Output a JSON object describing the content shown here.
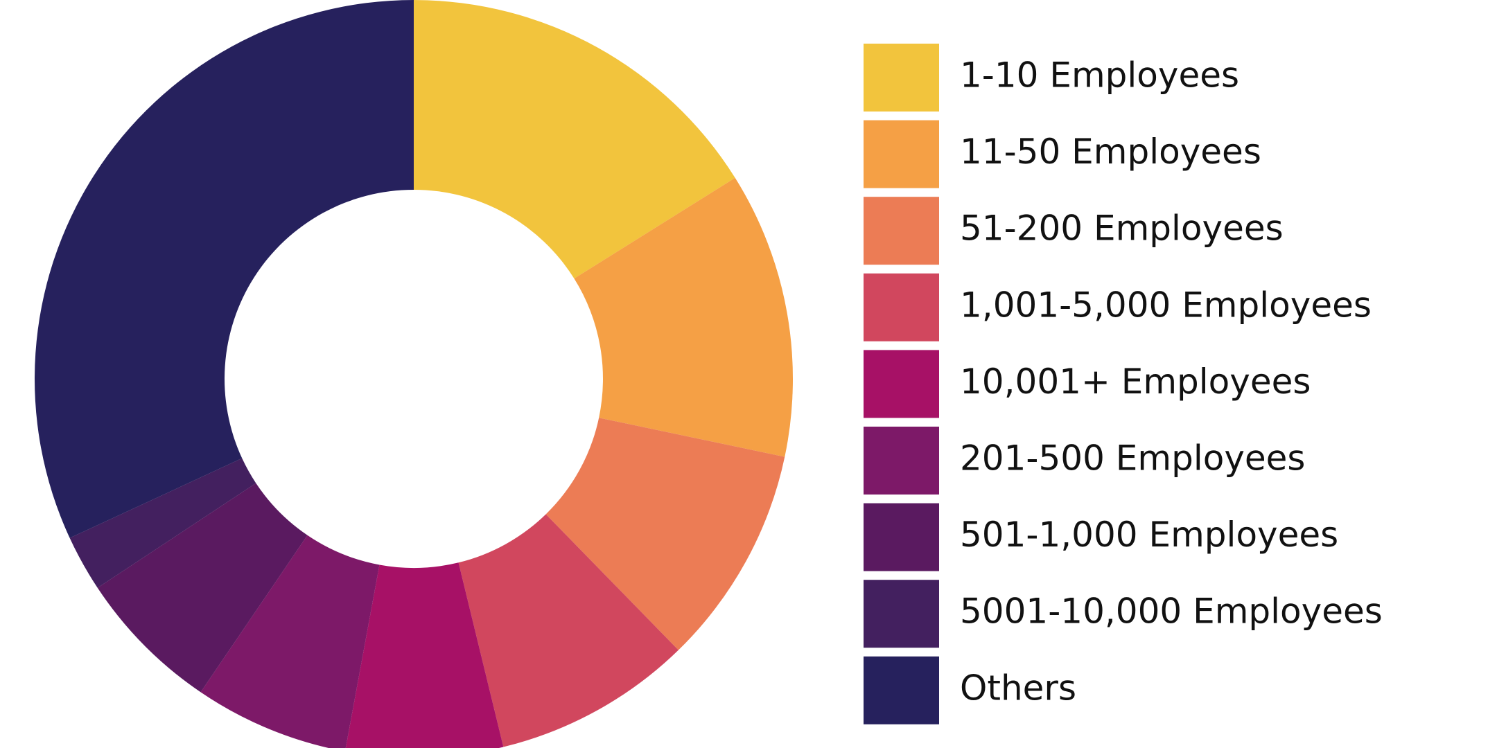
{
  "chart_data": {
    "type": "pie",
    "donut": true,
    "categories": [
      "1-10 Employees",
      "11-50 Employees",
      "51-200 Employees",
      "1,001-5,000 Employees",
      "10,001+ Employees",
      "201-500 Employees",
      "501-1,000 Employees",
      "5001-10,000 Employees",
      "Others"
    ],
    "values": [
      16.1,
      12.2,
      9.4,
      8.5,
      6.7,
      6.6,
      6.2,
      2.4,
      31.9
    ],
    "colors": [
      "#f2c43d",
      "#f5a045",
      "#ec7c55",
      "#d1475e",
      "#a71166",
      "#7d1968",
      "#5a1a60",
      "#43205f",
      "#26215d"
    ],
    "legend": "right"
  }
}
